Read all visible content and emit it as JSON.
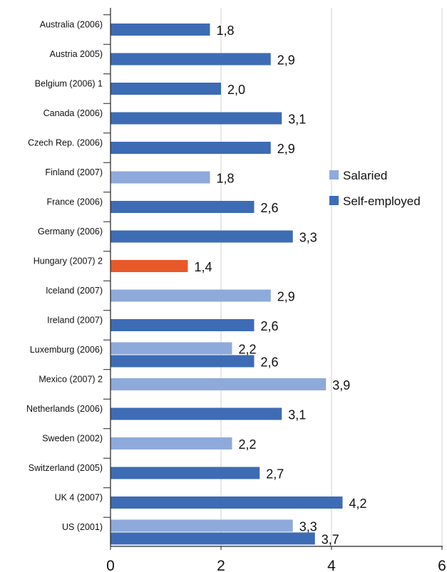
{
  "chart_data": {
    "type": "bar",
    "orientation": "horizontal",
    "title": "",
    "xlabel": "",
    "ylabel": "",
    "xlim": [
      0,
      6
    ],
    "x_ticks": [
      "0",
      "2",
      "4",
      "6"
    ],
    "grid": "vertical",
    "legend_position": "right",
    "decimal_separator": ",",
    "categories": [
      "Australia (2006)",
      "Austria 2005)",
      "Belgium (2006) 1",
      "Canada (2006)",
      "Czech Rep. (2006)",
      "Finland (2007)",
      "France (2006)",
      "Germany (2006)",
      "Hungary (2007) 2",
      "Iceland (2007)",
      "Ireland (2007)",
      "Luxemburg (2006)",
      "Mexico (2007) 2",
      "Netherlands (2006)",
      "Sweden (2002)",
      "Switzerland  (2005)",
      "UK 4 (2007)",
      "US (2001)"
    ],
    "series": [
      {
        "name": "Salaried",
        "color": "#8eaadb",
        "values": [
          null,
          null,
          null,
          null,
          null,
          1.8,
          null,
          null,
          null,
          2.9,
          null,
          2.2,
          3.9,
          null,
          2.2,
          null,
          null,
          3.3
        ]
      },
      {
        "name": "Self-employed",
        "color": "#3d6cb5",
        "values": [
          1.8,
          2.9,
          2.0,
          3.1,
          2.9,
          null,
          2.6,
          3.3,
          null,
          null,
          2.6,
          2.6,
          null,
          3.1,
          null,
          2.7,
          4.2,
          3.7
        ]
      },
      {
        "name": "",
        "color": "#e8592a",
        "values": [
          null,
          null,
          null,
          null,
          null,
          null,
          null,
          null,
          1.4,
          null,
          null,
          null,
          null,
          null,
          null,
          null,
          null,
          null
        ]
      }
    ],
    "legend": [
      "Salaried",
      "Self-employed"
    ]
  }
}
